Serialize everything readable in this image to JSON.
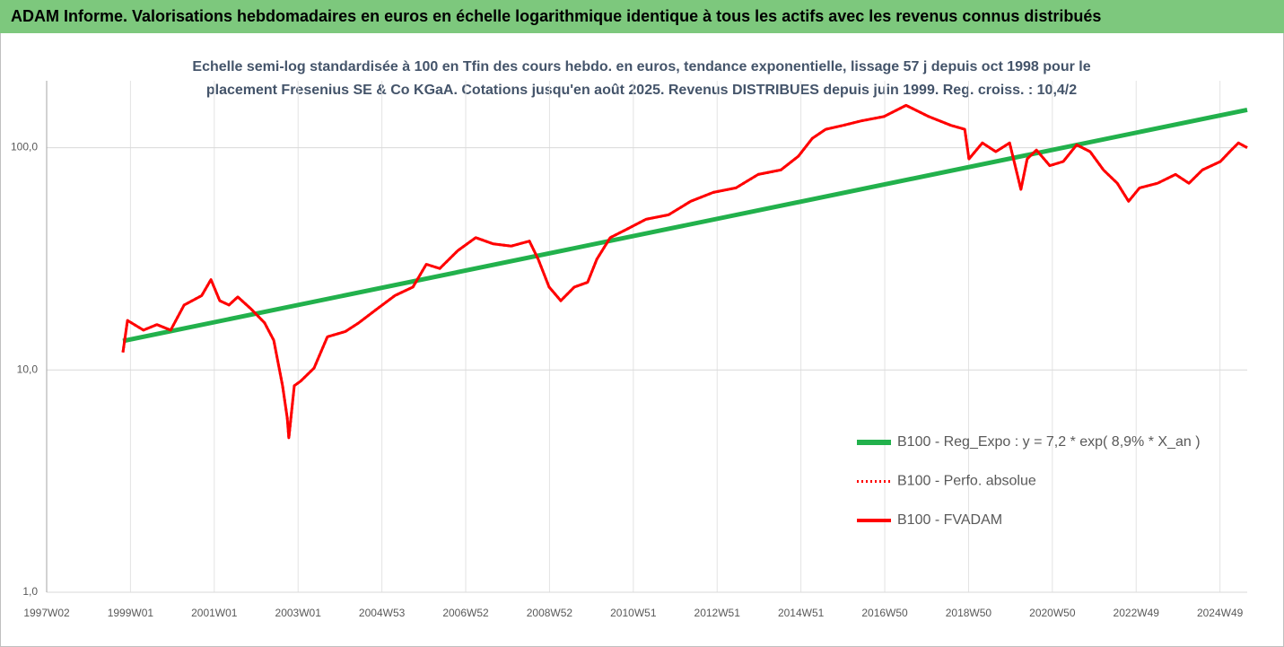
{
  "chart_data": {
    "type": "line",
    "title": "ADAM Informe. Valorisations hebdomadaires en euros en échelle logarithmique identique à tous les actifs avec les revenus connus distribués",
    "subtitle": [
      "Echelle semi-log standardisée à 100 en Tfin des cours hebdo. en euros, tendance exponentielle, lissage 57 j depuis oct 1998 pour le",
      "placement Fresenius SE & Co KGaA. Cotations jusqu'en août 2025.  Revenus DISTRIBUES depuis juin 1999. Reg. croiss. : 10,4/2"
    ],
    "log_scale": true,
    "grid": true,
    "legend_position": "lower right",
    "xlim": [
      1997.0,
      2025.65
    ],
    "xticks": [
      {
        "value": 1997.0,
        "label": "1997W02"
      },
      {
        "value": 1999.0,
        "label": "1999W01"
      },
      {
        "value": 2001.0,
        "label": "2001W01"
      },
      {
        "value": 2003.0,
        "label": "2003W01"
      },
      {
        "value": 2005.0,
        "label": "2004W53"
      },
      {
        "value": 2007.0,
        "label": "2006W52"
      },
      {
        "value": 2009.0,
        "label": "2008W52"
      },
      {
        "value": 2011.0,
        "label": "2010W51"
      },
      {
        "value": 2013.0,
        "label": "2012W51"
      },
      {
        "value": 2015.0,
        "label": "2014W51"
      },
      {
        "value": 2017.0,
        "label": "2016W50"
      },
      {
        "value": 2019.0,
        "label": "2018W50"
      },
      {
        "value": 2021.0,
        "label": "2020W50"
      },
      {
        "value": 2023.0,
        "label": "2022W49"
      },
      {
        "value": 2025.0,
        "label": "2024W49"
      }
    ],
    "ylim": [
      1,
      200
    ],
    "yticks": [
      {
        "value": 1,
        "label": "1,0"
      },
      {
        "value": 10,
        "label": "10,0"
      },
      {
        "value": 100,
        "label": "100,0"
      }
    ],
    "series": [
      {
        "name": "B100 - Reg_Expo : y = 7,2 * exp( 8,9% *  X_an )",
        "color": "#22b14c",
        "dash": "solid",
        "width": 5,
        "x": [
          1998.82,
          2025.65
        ],
        "values": [
          13.5,
          148
        ]
      },
      {
        "name": "B100 - Perfo. absolue",
        "color": "#ff0000",
        "dash": "dotted",
        "width": 3,
        "x": [
          1998.82,
          1998.93,
          1999.31,
          1999.63,
          1999.96,
          2000.28,
          2000.7,
          2000.92,
          2001.13,
          2001.35,
          2001.56,
          2001.88,
          2002.2,
          2002.42,
          2002.63,
          2002.74,
          2002.78,
          2002.91,
          2003.06,
          2003.38,
          2003.7,
          2004.13,
          2004.45,
          2004.88,
          2005.31,
          2005.74,
          2006.06,
          2006.38,
          2006.81,
          2007.24,
          2007.66,
          2008.09,
          2008.52,
          2008.73,
          2008.99,
          2009.27,
          2009.59,
          2009.91,
          2010.13,
          2010.45,
          2010.88,
          2011.3,
          2011.84,
          2012.37,
          2012.91,
          2013.45,
          2013.98,
          2014.52,
          2014.94,
          2015.27,
          2015.59,
          2016.01,
          2016.44,
          2016.98,
          2017.51,
          2018.05,
          2018.58,
          2018.91,
          2019.01,
          2019.33,
          2019.65,
          2019.98,
          2020.25,
          2020.4,
          2020.62,
          2020.94,
          2021.26,
          2021.58,
          2021.9,
          2022.22,
          2022.55,
          2022.82,
          2023.08,
          2023.51,
          2023.94,
          2024.26,
          2024.58,
          2025.01,
          2025.27,
          2025.44,
          2025.65
        ],
        "values": [
          12.0,
          16.7,
          15.1,
          16.0,
          15.1,
          19.6,
          21.6,
          25.5,
          20.5,
          19.6,
          21.3,
          18.8,
          16.3,
          13.6,
          8.5,
          6.1,
          4.95,
          8.5,
          8.9,
          10.2,
          14.1,
          14.9,
          16.3,
          18.8,
          21.6,
          23.6,
          29.9,
          28.6,
          34.4,
          39.4,
          36.9,
          36.1,
          38.0,
          31.5,
          23.6,
          20.5,
          23.6,
          24.8,
          31.5,
          39.4,
          43.3,
          47.6,
          49.9,
          57.4,
          62.9,
          65.9,
          75.8,
          79.4,
          91.5,
          110,
          121,
          126,
          132,
          138,
          155,
          138,
          126,
          121,
          89,
          105,
          96,
          105,
          64.9,
          89,
          97.6,
          83.0,
          86.6,
          103,
          96,
          79.4,
          69.2,
          57.4,
          65.9,
          69.2,
          75.8,
          69.2,
          79.4,
          86.6,
          97.6,
          105,
          100
        ]
      },
      {
        "name": "B100 - FVADAM",
        "color": "#ff0000",
        "dash": "solid",
        "width": 3,
        "x": [
          1998.82,
          1998.93,
          1999.31,
          1999.63,
          1999.96,
          2000.28,
          2000.7,
          2000.92,
          2001.13,
          2001.35,
          2001.56,
          2001.88,
          2002.2,
          2002.42,
          2002.63,
          2002.74,
          2002.78,
          2002.91,
          2003.06,
          2003.38,
          2003.7,
          2004.13,
          2004.45,
          2004.88,
          2005.31,
          2005.74,
          2006.06,
          2006.38,
          2006.81,
          2007.24,
          2007.66,
          2008.09,
          2008.52,
          2008.73,
          2008.99,
          2009.27,
          2009.59,
          2009.91,
          2010.13,
          2010.45,
          2010.88,
          2011.3,
          2011.84,
          2012.37,
          2012.91,
          2013.45,
          2013.98,
          2014.52,
          2014.94,
          2015.27,
          2015.59,
          2016.01,
          2016.44,
          2016.98,
          2017.51,
          2018.05,
          2018.58,
          2018.91,
          2019.01,
          2019.33,
          2019.65,
          2019.98,
          2020.25,
          2020.4,
          2020.62,
          2020.94,
          2021.26,
          2021.58,
          2021.9,
          2022.22,
          2022.55,
          2022.82,
          2023.08,
          2023.51,
          2023.94,
          2024.26,
          2024.58,
          2025.01,
          2025.27,
          2025.44,
          2025.65
        ],
        "values": [
          12.0,
          16.7,
          15.1,
          16.0,
          15.1,
          19.6,
          21.6,
          25.5,
          20.5,
          19.6,
          21.3,
          18.8,
          16.3,
          13.6,
          8.5,
          6.1,
          4.95,
          8.5,
          8.9,
          10.2,
          14.1,
          14.9,
          16.3,
          18.8,
          21.6,
          23.6,
          29.9,
          28.6,
          34.4,
          39.4,
          36.9,
          36.1,
          38.0,
          31.5,
          23.6,
          20.5,
          23.6,
          24.8,
          31.5,
          39.4,
          43.3,
          47.6,
          49.9,
          57.4,
          62.9,
          65.9,
          75.8,
          79.4,
          91.5,
          110,
          121,
          126,
          132,
          138,
          155,
          138,
          126,
          121,
          89,
          105,
          96,
          105,
          64.9,
          89,
          97.6,
          83.0,
          86.6,
          103,
          96,
          79.4,
          69.2,
          57.4,
          65.9,
          69.2,
          75.8,
          69.2,
          79.4,
          86.6,
          97.6,
          105,
          100
        ]
      }
    ]
  }
}
